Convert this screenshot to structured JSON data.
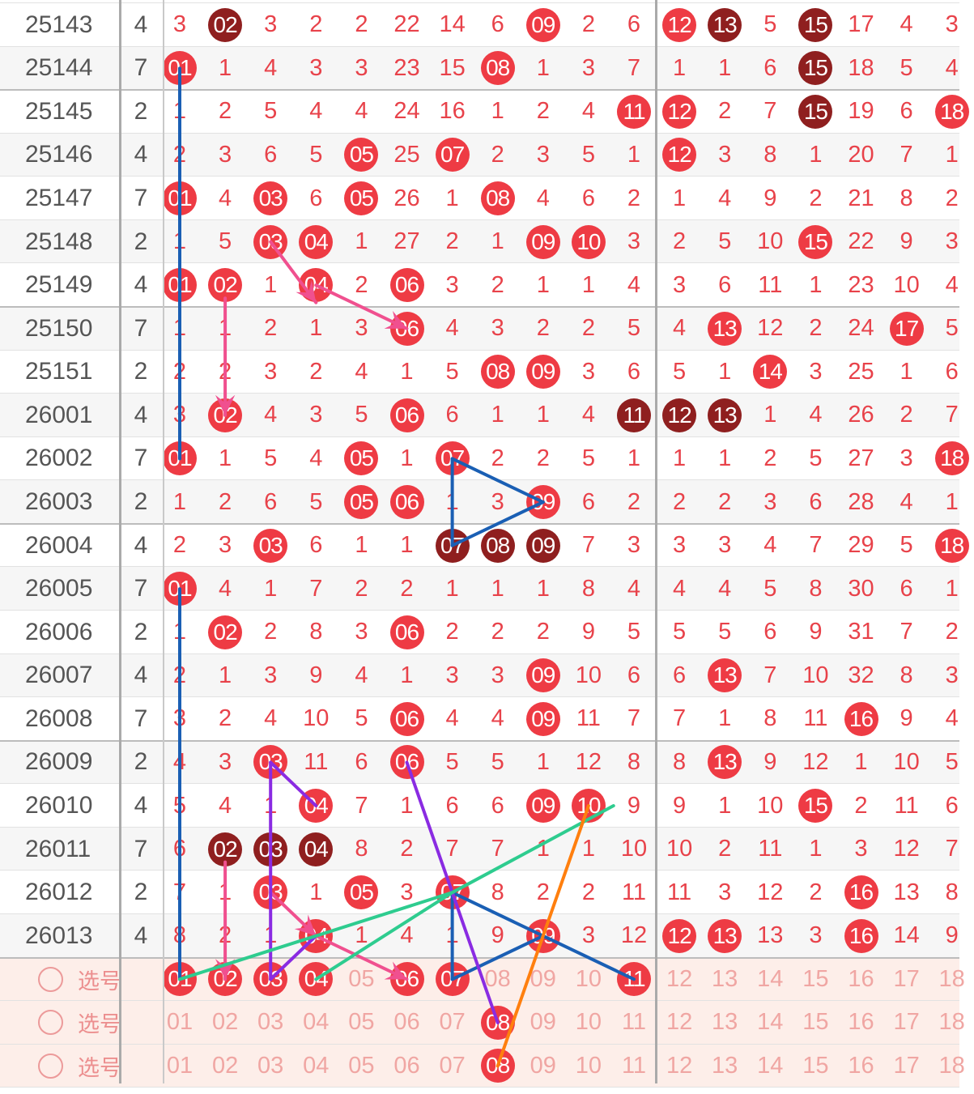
{
  "columns": [
    "01",
    "02",
    "03",
    "04",
    "05",
    "06",
    "07",
    "08",
    "09",
    "10",
    "11",
    "12",
    "13",
    "14",
    "15",
    "16",
    "17",
    "18"
  ],
  "rows": [
    {
      "period": "25143",
      "sum": "4",
      "cells": [
        "3",
        {
          "b": "02",
          "s": "dark"
        },
        "3",
        "2",
        "2",
        "22",
        "14",
        "6",
        {
          "b": "09",
          "s": "red"
        },
        "2",
        "6",
        {
          "b": "12",
          "s": "red"
        },
        {
          "b": "13",
          "s": "dark"
        },
        "5",
        {
          "b": "15",
          "s": "dark"
        },
        "17",
        "4",
        "3"
      ]
    },
    {
      "period": "25144",
      "sum": "7",
      "cells": [
        {
          "b": "01",
          "s": "red"
        },
        "1",
        "4",
        "3",
        "3",
        "23",
        "15",
        {
          "b": "08",
          "s": "red"
        },
        "1",
        "3",
        "7",
        "1",
        "1",
        "6",
        {
          "b": "15",
          "s": "dark"
        },
        "18",
        "5",
        "4"
      ]
    },
    {
      "period": "25145",
      "sum": "2",
      "cells": [
        "1",
        "2",
        "5",
        "4",
        "4",
        "24",
        "16",
        "1",
        "2",
        "4",
        {
          "b": "11",
          "s": "red"
        },
        {
          "b": "12",
          "s": "red"
        },
        "2",
        "7",
        {
          "b": "15",
          "s": "dark"
        },
        "19",
        "6",
        {
          "b": "18",
          "s": "red"
        }
      ]
    },
    {
      "period": "25146",
      "sum": "4",
      "cells": [
        "2",
        "3",
        "6",
        "5",
        {
          "b": "05",
          "s": "red"
        },
        "25",
        {
          "b": "07",
          "s": "red"
        },
        "2",
        "3",
        "5",
        "1",
        {
          "b": "12",
          "s": "red"
        },
        "3",
        "8",
        "1",
        "20",
        "7",
        "1"
      ]
    },
    {
      "period": "25147",
      "sum": "7",
      "cells": [
        {
          "b": "01",
          "s": "red"
        },
        "4",
        {
          "b": "03",
          "s": "red"
        },
        "6",
        {
          "b": "05",
          "s": "red"
        },
        "26",
        "1",
        {
          "b": "08",
          "s": "red"
        },
        "4",
        "6",
        "2",
        "1",
        "4",
        "9",
        "2",
        "21",
        "8",
        "2"
      ]
    },
    {
      "period": "25148",
      "sum": "2",
      "cells": [
        "1",
        "5",
        {
          "b": "03",
          "s": "red"
        },
        {
          "b": "04",
          "s": "red"
        },
        "1",
        "27",
        "2",
        "1",
        {
          "b": "09",
          "s": "red"
        },
        {
          "b": "10",
          "s": "red"
        },
        "3",
        "2",
        "5",
        "10",
        {
          "b": "15",
          "s": "red"
        },
        "22",
        "9",
        "3"
      ]
    },
    {
      "period": "25149",
      "sum": "4",
      "cells": [
        {
          "b": "01",
          "s": "red"
        },
        {
          "b": "02",
          "s": "red"
        },
        "1",
        {
          "b": "04",
          "s": "red"
        },
        "2",
        {
          "b": "06",
          "s": "red"
        },
        "3",
        "2",
        "1",
        "1",
        "4",
        "3",
        "6",
        "11",
        "1",
        "23",
        "10",
        "4"
      ]
    },
    {
      "period": "25150",
      "sum": "7",
      "cells": [
        "1",
        "1",
        "2",
        "1",
        "3",
        {
          "b": "06",
          "s": "red"
        },
        "4",
        "3",
        "2",
        "2",
        "5",
        "4",
        {
          "b": "13",
          "s": "red"
        },
        "12",
        "2",
        "24",
        {
          "b": "17",
          "s": "red"
        },
        "5"
      ]
    },
    {
      "period": "25151",
      "sum": "2",
      "cells": [
        "2",
        "2",
        "3",
        "2",
        "4",
        "1",
        "5",
        {
          "b": "08",
          "s": "red"
        },
        {
          "b": "09",
          "s": "red"
        },
        "3",
        "6",
        "5",
        "1",
        {
          "b": "14",
          "s": "red"
        },
        "3",
        "25",
        "1",
        "6"
      ]
    },
    {
      "period": "26001",
      "sum": "4",
      "cells": [
        "3",
        {
          "b": "02",
          "s": "red"
        },
        "4",
        "3",
        "5",
        {
          "b": "06",
          "s": "red"
        },
        "6",
        "1",
        "1",
        "4",
        {
          "b": "11",
          "s": "dark"
        },
        {
          "b": "12",
          "s": "dark"
        },
        {
          "b": "13",
          "s": "dark"
        },
        "1",
        "4",
        "26",
        "2",
        "7"
      ]
    },
    {
      "period": "26002",
      "sum": "7",
      "cells": [
        {
          "b": "01",
          "s": "red"
        },
        "1",
        "5",
        "4",
        {
          "b": "05",
          "s": "red"
        },
        "1",
        {
          "b": "07",
          "s": "red"
        },
        "2",
        "2",
        "5",
        "1",
        "1",
        "1",
        "2",
        "5",
        "27",
        "3",
        {
          "b": "18",
          "s": "red"
        }
      ]
    },
    {
      "period": "26003",
      "sum": "2",
      "cells": [
        "1",
        "2",
        "6",
        "5",
        {
          "b": "05",
          "s": "red"
        },
        {
          "b": "06",
          "s": "red"
        },
        "1",
        "3",
        {
          "b": "09",
          "s": "red"
        },
        "6",
        "2",
        "2",
        "2",
        "3",
        "6",
        "28",
        "4",
        "1"
      ]
    },
    {
      "period": "26004",
      "sum": "4",
      "cells": [
        "2",
        "3",
        {
          "b": "03",
          "s": "red"
        },
        "6",
        "1",
        "1",
        {
          "b": "07",
          "s": "dark"
        },
        {
          "b": "08",
          "s": "dark"
        },
        {
          "b": "09",
          "s": "dark"
        },
        "7",
        "3",
        "3",
        "3",
        "4",
        "7",
        "29",
        "5",
        {
          "b": "18",
          "s": "red"
        }
      ]
    },
    {
      "period": "26005",
      "sum": "7",
      "cells": [
        {
          "b": "01",
          "s": "red"
        },
        "4",
        "1",
        "7",
        "2",
        "2",
        "1",
        "1",
        "1",
        "8",
        "4",
        "4",
        "4",
        "5",
        "8",
        "30",
        "6",
        "1"
      ]
    },
    {
      "period": "26006",
      "sum": "2",
      "cells": [
        "1",
        {
          "b": "02",
          "s": "red"
        },
        "2",
        "8",
        "3",
        {
          "b": "06",
          "s": "red"
        },
        "2",
        "2",
        "2",
        "9",
        "5",
        "5",
        "5",
        "6",
        "9",
        "31",
        "7",
        "2"
      ]
    },
    {
      "period": "26007",
      "sum": "4",
      "cells": [
        "2",
        "1",
        "3",
        "9",
        "4",
        "1",
        "3",
        "3",
        {
          "b": "09",
          "s": "red"
        },
        "10",
        "6",
        "6",
        {
          "b": "13",
          "s": "red"
        },
        "7",
        "10",
        "32",
        "8",
        "3"
      ]
    },
    {
      "period": "26008",
      "sum": "7",
      "cells": [
        "3",
        "2",
        "4",
        "10",
        "5",
        {
          "b": "06",
          "s": "red"
        },
        "4",
        "4",
        {
          "b": "09",
          "s": "red"
        },
        "11",
        "7",
        "7",
        "1",
        "8",
        "11",
        {
          "b": "16",
          "s": "red"
        },
        "9",
        "4"
      ]
    },
    {
      "period": "26009",
      "sum": "2",
      "cells": [
        "4",
        "3",
        {
          "b": "03",
          "s": "red"
        },
        "11",
        "6",
        {
          "b": "06",
          "s": "red"
        },
        "5",
        "5",
        "1",
        "12",
        "8",
        "8",
        {
          "b": "13",
          "s": "red"
        },
        "9",
        "12",
        "1",
        "10",
        "5"
      ]
    },
    {
      "period": "26010",
      "sum": "4",
      "cells": [
        "5",
        "4",
        "1",
        {
          "b": "04",
          "s": "red"
        },
        "7",
        "1",
        "6",
        "6",
        {
          "b": "09",
          "s": "red"
        },
        {
          "b": "10",
          "s": "red"
        },
        "9",
        "9",
        "1",
        "10",
        {
          "b": "15",
          "s": "red"
        },
        "2",
        "11",
        "6"
      ]
    },
    {
      "period": "26011",
      "sum": "7",
      "cells": [
        "6",
        {
          "b": "02",
          "s": "dark"
        },
        {
          "b": "03",
          "s": "dark"
        },
        {
          "b": "04",
          "s": "dark"
        },
        "8",
        "2",
        "7",
        "7",
        "1",
        "1",
        "10",
        "10",
        "2",
        "11",
        "1",
        "3",
        "12",
        "7"
      ]
    },
    {
      "period": "26012",
      "sum": "2",
      "cells": [
        "7",
        "1",
        {
          "b": "03",
          "s": "red"
        },
        "1",
        {
          "b": "05",
          "s": "red"
        },
        "3",
        {
          "b": "07",
          "s": "red"
        },
        "8",
        "2",
        "2",
        "11",
        "11",
        "3",
        "12",
        "2",
        {
          "b": "16",
          "s": "red"
        },
        "13",
        "8"
      ]
    },
    {
      "period": "26013",
      "sum": "4",
      "cells": [
        "8",
        "2",
        "1",
        {
          "b": "04",
          "s": "red"
        },
        "1",
        "4",
        "1",
        "9",
        {
          "b": "09",
          "s": "red"
        },
        "3",
        "12",
        {
          "b": "12",
          "s": "red"
        },
        {
          "b": "13",
          "s": "red"
        },
        "13",
        "3",
        {
          "b": "16",
          "s": "red"
        },
        "14",
        "9"
      ]
    }
  ],
  "picks": [
    {
      "label": "选号",
      "selected": [
        "01",
        "02",
        "03",
        "04",
        "06",
        "07",
        "11"
      ]
    },
    {
      "label": "选号",
      "selected": [
        "08"
      ]
    },
    {
      "label": "选号",
      "selected": [
        "08"
      ]
    }
  ],
  "colors": {
    "ball_red": "#ee3b44",
    "ball_dark": "#8f1f1f",
    "digit_red": "#e8424a",
    "option_pink": "#f0a6a3",
    "line_blue": "#1a5fb4",
    "line_pink": "#f0508f",
    "line_purple": "#8a2be2",
    "line_green": "#2ecc8f",
    "line_orange": "#ff7f0e"
  }
}
